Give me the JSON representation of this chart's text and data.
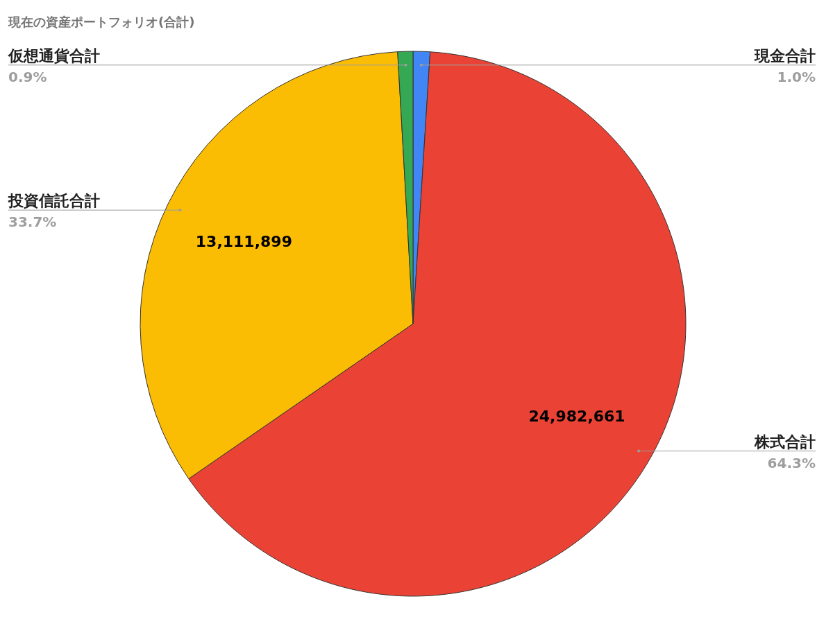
{
  "chart_data": {
    "type": "pie",
    "title": "現在の資産ポートフォリオ(合計)",
    "categories": [
      "現金合計",
      "株式合計",
      "投資信託合計",
      "仮想通貨合計"
    ],
    "values": [
      1.0,
      64.3,
      33.7,
      0.9
    ],
    "colors": [
      "#4285f4",
      "#ea4335",
      "#fbbc04",
      "#34a853"
    ],
    "value_labels": [
      "1.0%",
      "64.3%",
      "33.7%",
      "0.9%"
    ],
    "annotations": [
      {
        "text": "24,982,661",
        "x": "株式合計"
      },
      {
        "text": "13,111,899",
        "x": "投資信託合計"
      }
    ]
  }
}
